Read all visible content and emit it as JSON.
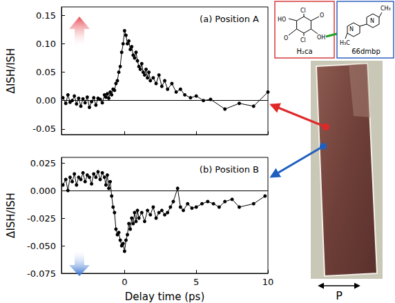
{
  "chart_data": [
    {
      "type": "line",
      "title": "(a) Position A",
      "ylabel": "ΔISH/ISH",
      "x": [
        -4.3,
        -4.1,
        -3.95,
        -3.8,
        -3.65,
        -3.5,
        -3.35,
        -3.2,
        -3.05,
        -2.9,
        -2.75,
        -2.6,
        -2.45,
        -2.3,
        -2.15,
        -2.0,
        -1.85,
        -1.7,
        -1.55,
        -1.4,
        -1.3,
        -1.2,
        -1.1,
        -1.0,
        -0.9,
        -0.8,
        -0.7,
        -0.6,
        -0.5,
        -0.4,
        -0.3,
        -0.2,
        -0.1,
        0,
        0.1,
        0.2,
        0.3,
        0.4,
        0.5,
        0.6,
        0.7,
        0.8,
        0.9,
        1.0,
        1.1,
        1.2,
        1.3,
        1.4,
        1.5,
        1.6,
        1.7,
        1.8,
        2.0,
        2.2,
        2.4,
        2.6,
        2.8,
        3.0,
        3.3,
        3.6,
        3.9,
        4.2,
        4.6,
        5.0,
        5.5,
        6.0,
        7.0,
        8.0,
        9.0,
        10.0
      ],
      "values": [
        0.005,
        -0.005,
        0.01,
        -0.003,
        0.0,
        0.008,
        -0.006,
        0.004,
        -0.01,
        0.003,
        -0.004,
        0.006,
        -0.012,
        -0.002,
        0.005,
        -0.008,
        0.004,
        0.002,
        -0.004,
        0.01,
        0.006,
        0.012,
        0.004,
        0.015,
        0.01,
        0.02,
        0.018,
        0.03,
        0.035,
        0.05,
        0.06,
        0.085,
        0.1,
        0.123,
        0.115,
        0.1,
        0.105,
        0.09,
        0.095,
        0.08,
        0.075,
        0.085,
        0.07,
        0.06,
        0.055,
        0.065,
        0.05,
        0.045,
        0.055,
        0.04,
        0.05,
        0.035,
        0.04,
        0.03,
        0.045,
        0.025,
        0.035,
        0.02,
        0.03,
        0.015,
        0.02,
        0.01,
        0.005,
        0.008,
        0.0,
        0.002,
        -0.015,
        -0.005,
        -0.01,
        0.015
      ],
      "color": "#000000",
      "marker": "circle",
      "line_style": "solid",
      "xlim": [
        -4.4,
        10
      ],
      "xticks": [
        0,
        5,
        10
      ],
      "ylim": [
        -0.06,
        0.165
      ],
      "yticks": [
        {
          "value": -0.05,
          "label": "-0.05"
        },
        {
          "value": 0,
          "label": "0.00"
        },
        {
          "value": 0.05,
          "label": "0.05"
        },
        {
          "value": 0.1,
          "label": "0.10"
        },
        {
          "value": 0.15,
          "label": "0.15"
        }
      ],
      "hlines": [
        0
      ],
      "grid": false,
      "tick_labels": "y"
    },
    {
      "type": "line",
      "title": "(b) Position B",
      "ylabel": "ΔISH/ISH",
      "xlabel": "Delay time (ps)",
      "x": [
        -4.3,
        -4.1,
        -3.95,
        -3.8,
        -3.65,
        -3.5,
        -3.35,
        -3.2,
        -3.05,
        -2.9,
        -2.75,
        -2.6,
        -2.45,
        -2.3,
        -2.15,
        -2.0,
        -1.85,
        -1.7,
        -1.55,
        -1.4,
        -1.3,
        -1.2,
        -1.1,
        -1.0,
        -0.9,
        -0.8,
        -0.7,
        -0.6,
        -0.5,
        -0.4,
        -0.3,
        -0.2,
        -0.1,
        0,
        0.1,
        0.2,
        0.3,
        0.4,
        0.5,
        0.6,
        0.7,
        0.8,
        0.9,
        1.0,
        1.2,
        1.4,
        1.6,
        1.8,
        2.0,
        2.2,
        2.4,
        2.6,
        2.8,
        3.0,
        3.2,
        3.4,
        3.7,
        3.9,
        4.1,
        4.4,
        4.7,
        5.0,
        5.4,
        5.8,
        6.2,
        6.6,
        7.0,
        7.5,
        8.0,
        9.0,
        9.8
      ],
      "values": [
        0.005,
        0.01,
        0.0,
        0.012,
        0.008,
        0.015,
        0.005,
        0.012,
        0.01,
        0.016,
        0.008,
        0.014,
        0.012,
        0.006,
        0.015,
        0.012,
        0.017,
        0.01,
        0.016,
        0.012,
        0.005,
        0.014,
        0.002,
        0.008,
        -0.005,
        -0.015,
        -0.02,
        -0.035,
        -0.04,
        -0.038,
        -0.045,
        -0.05,
        -0.048,
        -0.055,
        -0.045,
        -0.04,
        -0.03,
        -0.035,
        -0.025,
        -0.03,
        -0.02,
        -0.028,
        -0.018,
        -0.025,
        -0.02,
        -0.028,
        -0.018,
        -0.022,
        -0.015,
        -0.025,
        -0.02,
        -0.018,
        -0.022,
        -0.02,
        -0.015,
        -0.01,
        0.002,
        -0.015,
        -0.018,
        -0.012,
        -0.016,
        -0.015,
        -0.012,
        -0.01,
        -0.012,
        -0.015,
        -0.01,
        -0.008,
        -0.015,
        -0.012,
        -0.005
      ],
      "color": "#000000",
      "marker": "circle",
      "line_style": "solid",
      "xlim": [
        -4.4,
        10
      ],
      "xticks": [
        0,
        5,
        10
      ],
      "ylim": [
        -0.075,
        0.03
      ],
      "yticks": [
        {
          "value": -0.075,
          "label": "-0.075"
        },
        {
          "value": -0.05,
          "label": "-0.050"
        },
        -0.025,
        {
          "value": 0,
          "label": "0.000"
        },
        0.025
      ],
      "hlines": [
        0
      ],
      "grid": false
    }
  ],
  "structure": {
    "acid": {
      "label": "H₂ca",
      "atoms": [
        "HO",
        "Cl",
        "O",
        "O",
        "Cl",
        "OH"
      ]
    },
    "base": {
      "label": "66dmbp",
      "atoms": [
        "N",
        "N",
        "CH₃",
        "H₃C"
      ]
    }
  },
  "polarization_label": "P"
}
